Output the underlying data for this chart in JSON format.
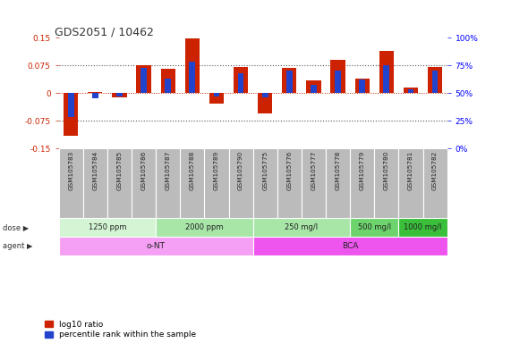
{
  "title": "GDS2051 / 10462",
  "samples": [
    "GSM105783",
    "GSM105784",
    "GSM105785",
    "GSM105786",
    "GSM105787",
    "GSM105788",
    "GSM105789",
    "GSM105790",
    "GSM105775",
    "GSM105776",
    "GSM105777",
    "GSM105778",
    "GSM105779",
    "GSM105780",
    "GSM105781",
    "GSM105782"
  ],
  "log10_ratio": [
    -0.115,
    0.002,
    -0.012,
    0.075,
    0.065,
    0.148,
    -0.028,
    0.07,
    -0.055,
    0.068,
    0.035,
    0.09,
    0.04,
    0.115,
    0.015,
    0.07
  ],
  "percentile": [
    28,
    45,
    47,
    73,
    63,
    78,
    47,
    68,
    46,
    70,
    57,
    70,
    62,
    75,
    53,
    70
  ],
  "ylim": [
    -0.15,
    0.15
  ],
  "yticks_left": [
    -0.15,
    -0.075,
    0,
    0.075,
    0.15
  ],
  "yticks_right": [
    0,
    25,
    50,
    75,
    100
  ],
  "dose_groups": [
    {
      "label": "1250 ppm",
      "start": 0,
      "end": 4,
      "color": "#d4f5d4"
    },
    {
      "label": "2000 ppm",
      "start": 4,
      "end": 8,
      "color": "#a8e6a8"
    },
    {
      "label": "250 mg/l",
      "start": 8,
      "end": 12,
      "color": "#a8e6a8"
    },
    {
      "label": "500 mg/l",
      "start": 12,
      "end": 14,
      "color": "#6dd46d"
    },
    {
      "label": "1000 mg/l",
      "start": 14,
      "end": 16,
      "color": "#3abf3a"
    }
  ],
  "agent_groups": [
    {
      "label": "o-NT",
      "start": 0,
      "end": 8,
      "color": "#f5a0f5"
    },
    {
      "label": "BCA",
      "start": 8,
      "end": 16,
      "color": "#ee55ee"
    }
  ],
  "bar_color_red": "#cc2200",
  "bar_color_blue": "#2244cc",
  "label_area_color": "#bbbbbb",
  "bg_color": "#ffffff"
}
